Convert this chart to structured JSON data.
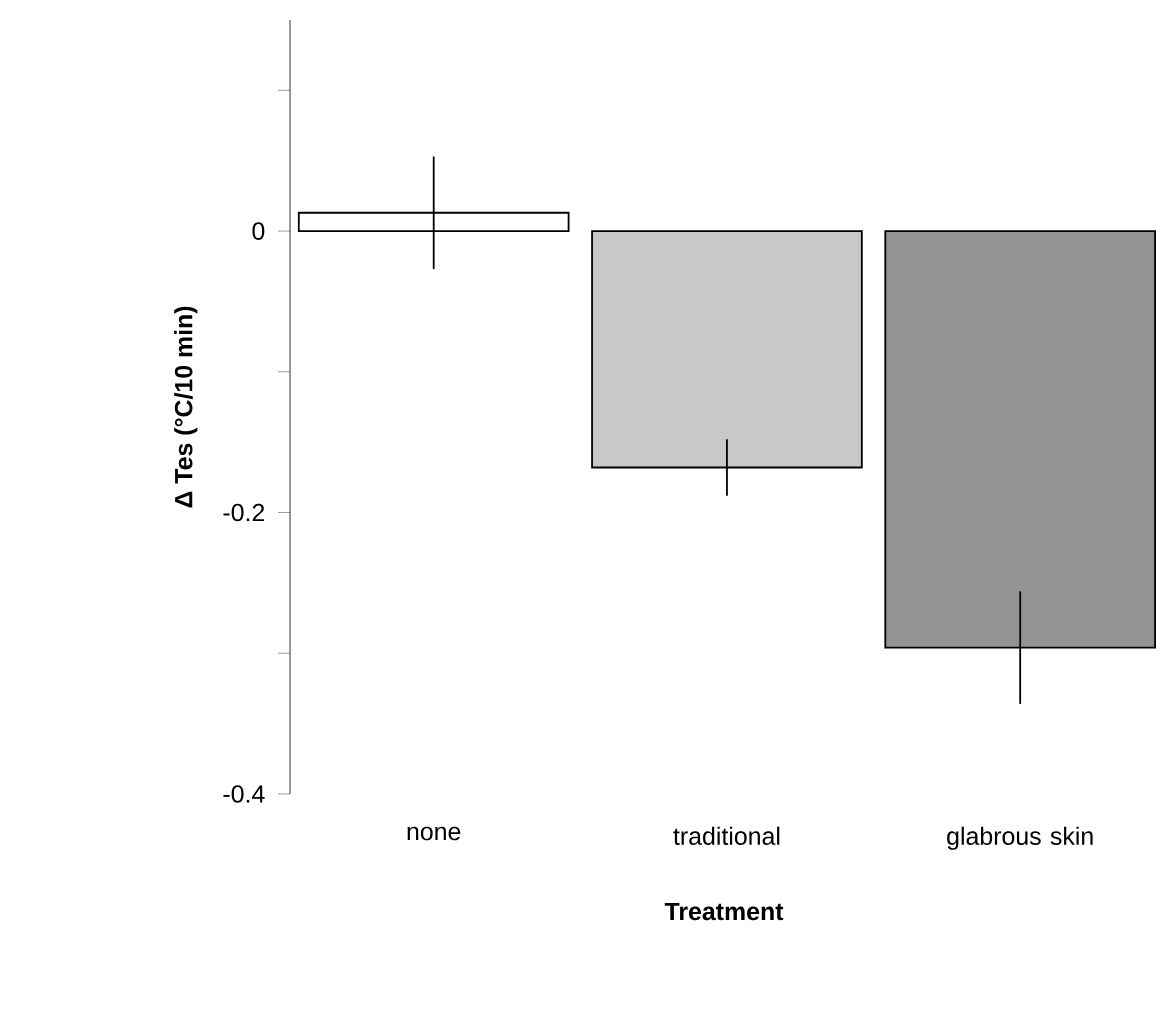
{
  "chart_data": {
    "type": "bar",
    "ylabel": "Δ Tes (°C/10 min)",
    "xlabel": "Treatment",
    "categories": [
      "none",
      "traditional",
      "glabrous skin"
    ],
    "values": [
      0.013,
      -0.168,
      -0.296
    ],
    "errors": [
      0.04,
      0.02,
      0.04
    ],
    "colors": [
      "#ffffff",
      "#c8c8c8",
      "#939393"
    ],
    "ylim": [
      -0.4,
      0.15
    ],
    "yticks": [
      {
        "value": -0.4,
        "label": "-0.4"
      },
      {
        "value": -0.3,
        "label": null
      },
      {
        "value": -0.2,
        "label": "-0.2"
      },
      {
        "value": -0.1,
        "label": null
      },
      0,
      {
        "value": 0.1,
        "label": null
      }
    ]
  }
}
